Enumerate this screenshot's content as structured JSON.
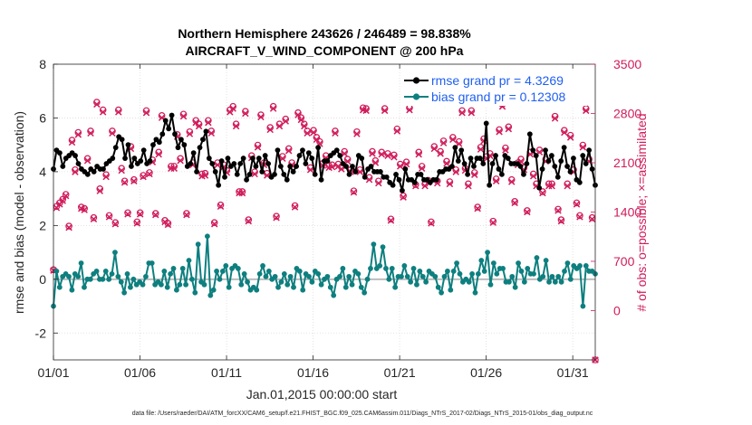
{
  "chart_data": {
    "type": "line",
    "title_line1": "Northern Hemisphere 243626 / 246489 = 98.838%",
    "title_line2": "AIRCRAFT_V_WIND_COMPONENT @ 200 hPa",
    "xlabel": "Jan.01,2015 00:00:00 start",
    "ylabel_left": "rmse and bias (model - observation)",
    "ylabel_right": "# of obs: o=possible; ×=assimilated",
    "footnote": "data file: /Users/raeder/DAI/ATM_forcXX/CAM6_setup/f.e21.FHIST_BGC.f09_025.CAM6assim.011/Diags_NTrS_2017-02/Diags_NTrS_2015-01/obs_diag_output.nc",
    "x_tick_labels": [
      "01/01",
      "01/06",
      "01/11",
      "01/16",
      "01/21",
      "01/26",
      "01/31"
    ],
    "x_tick_days": [
      1,
      6,
      11,
      16,
      21,
      26,
      31
    ],
    "xlim_days": [
      1,
      32.3
    ],
    "ylim_left": [
      -3,
      8
    ],
    "y_ticks_left": [
      -2,
      0,
      2,
      4,
      6,
      8
    ],
    "y_tick_labels_left": [
      "-2",
      "0",
      "2",
      "4",
      "6",
      "8"
    ],
    "ylim_right": [
      -700,
      3500
    ],
    "y_ticks_right": [
      0,
      700,
      1400,
      2100,
      2800,
      3500
    ],
    "y_tick_labels_right": [
      "0",
      "700",
      "1400",
      "2100",
      "2800",
      "3500"
    ],
    "grid": true,
    "legend_placement": "top-right",
    "colors": {
      "rmse": "#000000",
      "bias": "#0e7f7f",
      "obs": "#d01c5b",
      "zero_line": "#bdbdbd",
      "legend_text": "#1f5ff0"
    },
    "series": [
      {
        "name": "rmse grand pr = 4.3269",
        "axis": "left",
        "values": [
          4.1,
          4.8,
          4.7,
          4.2,
          4.5,
          4.6,
          4.7,
          4.6,
          4.3,
          4.1,
          4.0,
          3.9,
          4.1,
          4.0,
          4.2,
          4.1,
          4.1,
          4.3,
          4.4,
          4.5,
          4.9,
          5.3,
          5.2,
          4.5,
          5.0,
          4.2,
          4.5,
          4.3,
          4.4,
          4.8,
          4.3,
          4.4,
          5.0,
          5.2,
          5.1,
          5.4,
          5.9,
          5.6,
          6.1,
          5.4,
          4.9,
          5.2,
          5.0,
          4.2,
          4.3,
          4.7,
          4.0,
          4.9,
          5.2,
          5.5,
          4.5,
          4.3,
          4.0,
          3.5,
          4.4,
          3.8,
          4.5,
          4.2,
          4.3,
          3.9,
          4.3,
          4.5,
          3.7,
          3.9,
          4.5,
          4.2,
          4.5,
          4.0,
          4.6,
          4.3,
          3.8,
          3.9,
          4.8,
          4.2,
          3.9,
          3.7,
          4.2,
          4.0,
          4.2,
          4.6,
          4.8,
          4.3,
          4.7,
          4.5,
          3.9,
          4.9,
          3.7,
          4.4,
          4.4,
          4.6,
          4.7,
          4.8,
          4.6,
          4.3,
          4.2,
          3.9,
          4.2,
          4.0,
          4.6,
          4.5,
          3.8,
          4.1,
          4.2,
          4.0,
          4.0,
          4.0,
          3.8,
          3.8,
          3.6,
          3.5,
          3.9,
          3.7,
          3.3,
          4.1,
          3.7,
          3.7,
          3.6,
          3.9,
          3.9,
          3.7,
          3.7,
          3.6,
          3.7,
          3.7,
          4.0,
          4.0,
          4.1,
          4.1,
          4.2,
          4.9,
          4.4,
          4.8,
          4.3,
          3.9,
          4.5,
          4.2,
          4.5,
          4.5,
          4.3,
          5.8,
          3.5,
          4.3,
          4.6,
          4.1,
          3.9,
          4.6,
          4.5,
          4.3,
          4.3,
          4.3,
          4.2,
          3.9,
          4.3,
          5.4,
          4.8,
          4.6,
          3.4,
          4.1,
          4.8,
          4.4,
          4.6,
          4.2,
          3.8,
          4.4,
          4.9,
          4.2,
          4.0,
          4.5,
          3.7,
          3.6,
          4.6,
          4.3,
          4.8,
          4.1,
          3.5
        ]
      },
      {
        "name": "bias grand pr = 0.12308",
        "axis": "left",
        "values": [
          -1.0,
          0.3,
          -0.3,
          0.1,
          0.2,
          0.1,
          -0.4,
          0.2,
          0.1,
          0.6,
          -0.3,
          0.0,
          0.0,
          0.2,
          0.3,
          0.0,
          0.0,
          0.3,
          0.0,
          0.2,
          1.0,
          0.1,
          -0.1,
          -0.5,
          0.2,
          -0.3,
          0.0,
          -0.2,
          -0.1,
          -0.2,
          0.1,
          0.6,
          0.6,
          -0.2,
          -0.1,
          -0.2,
          0.3,
          -0.3,
          0.2,
          0.4,
          -0.4,
          -0.2,
          0.4,
          -0.2,
          0.7,
          0.0,
          -0.5,
          1.3,
          -0.1,
          -0.2,
          1.6,
          -0.6,
          -0.4,
          0.3,
          0.0,
          0.3,
          0.5,
          -0.3,
          0.4,
          0.5,
          0.4,
          -0.2,
          0.2,
          -0.1,
          -0.4,
          -0.3,
          -0.4,
          0.2,
          0.5,
          0.1,
          0.3,
          0.0,
          0.1,
          -0.3,
          -0.1,
          0.2,
          -0.2,
          0.1,
          -0.3,
          0.4,
          0.3,
          -0.4,
          0.2,
          0.1,
          -0.1,
          0.3,
          0.2,
          -0.2,
          0.0,
          0.1,
          -0.3,
          -0.6,
          0.0,
          0.1,
          0.4,
          -0.3,
          0.1,
          -0.2,
          0.3,
          0.2,
          -0.3,
          -0.5,
          0.0,
          0.4,
          1.3,
          0.4,
          0.5,
          1.2,
          0.4,
          0.0,
          0.4,
          -0.3,
          0.1,
          0.1,
          0.5,
          0.1,
          -0.1,
          0.4,
          -0.2,
          0.3,
          0.1,
          -0.1,
          0.3,
          0.2,
          0.1,
          -0.3,
          -0.5,
          0.1,
          0.3,
          -0.4,
          0.3,
          0.6,
          0.2,
          -0.1,
          0.0,
          -0.1,
          0.2,
          -0.5,
          0.2,
          0.7,
          0.3,
          1.0,
          -0.2,
          0.6,
          0.2,
          0.4,
          0.4,
          -0.1,
          -0.1,
          0.1,
          -0.3,
          0.6,
          0.3,
          -0.1,
          0.4,
          0.2,
          0.2,
          0.8,
          0.0,
          0.1,
          0.7,
          -0.1,
          0.1,
          -0.1,
          0.1,
          -0.1,
          0.3,
          0.6,
          0.0,
          0.5,
          0.4,
          0.5,
          -1.0,
          0.5,
          0.3,
          0.3,
          0.2
        ]
      },
      {
        "name": "obs possible",
        "axis": "right",
        "marker": "o",
        "values": [
          580,
          1480,
          1530,
          1580,
          1650,
          1200,
          2420,
          2000,
          2530,
          1470,
          1450,
          2160,
          2550,
          1320,
          2960,
          1730,
          2850,
          1930,
          1350,
          2550,
          1250,
          2850,
          2020,
          1840,
          1390,
          2330,
          1860,
          1260,
          1390,
          1920,
          2840,
          1960,
          2140,
          1380,
          2250,
          2770,
          1280,
          1240,
          2050,
          2050,
          2500,
          2160,
          2790,
          1380,
          2540,
          2100,
          2700,
          2650,
          1940,
          1950,
          2700,
          2550,
          1250,
          2100,
          1500,
          2070,
          1990,
          2850,
          2900,
          2650,
          1690,
          1690,
          2830,
          1290,
          2200,
          1970,
          2350,
          2780,
          2100,
          1950,
          2600,
          2900,
          1340,
          2650,
          2190,
          2720,
          2300,
          2100,
          1490,
          2810,
          2740,
          2650,
          2550,
          2030,
          2560,
          2460,
          2400,
          2090,
          2200,
          2060,
          2070,
          2550,
          2080,
          2040,
          2260,
          2150,
          2000,
          1700,
          2540,
          2000,
          2880,
          2870,
          1890,
          2260,
          2130,
          1840,
          2250,
          2870,
          2230,
          1300,
          2210,
          2580,
          2080,
          1630,
          2110,
          2880,
          3030,
          1790,
          2250,
          2050,
          1800,
          1850,
          1260,
          2330,
          1840,
          2260,
          2410,
          2120,
          1830,
          2460,
          2000,
          2400,
          2840,
          2020,
          1800,
          2840,
          1960,
          1470,
          2320,
          2440,
          2190,
          2230,
          1270,
          1870,
          2570,
          2930,
          2310,
          2610,
          1860,
          1550,
          2100,
          2150,
          2030,
          1420,
          2250,
          1940,
          1800,
          2280,
          1690,
          2150,
          1800,
          1800,
          2760,
          1440,
          1290,
          2560,
          1800,
          2490,
          2000,
          1530,
          1350,
          2350,
          2870,
          2150,
          1320,
          -700
        ]
      },
      {
        "name": "obs assimilated",
        "axis": "right",
        "marker": "x",
        "values": [
          570,
          1460,
          1510,
          1560,
          1630,
          1180,
          2390,
          1970,
          2500,
          1450,
          1430,
          2130,
          2520,
          1300,
          2930,
          1700,
          2820,
          1900,
          1330,
          2520,
          1230,
          2820,
          1990,
          1820,
          1370,
          2300,
          1840,
          1240,
          1370,
          1900,
          2810,
          1940,
          2110,
          1360,
          2220,
          2740,
          1260,
          1220,
          2020,
          2020,
          2470,
          2130,
          2760,
          1360,
          2510,
          2070,
          2670,
          2620,
          1910,
          1920,
          2670,
          2520,
          1230,
          2070,
          1480,
          2040,
          1960,
          2820,
          2870,
          2620,
          1670,
          1670,
          2800,
          1270,
          2170,
          1940,
          2320,
          2750,
          2070,
          1920,
          2570,
          2870,
          1320,
          2620,
          2160,
          2690,
          2270,
          2070,
          1470,
          2780,
          2710,
          2620,
          2520,
          2000,
          2530,
          2430,
          2370,
          2060,
          2170,
          2030,
          2040,
          2520,
          2050,
          2010,
          2230,
          2120,
          1970,
          1680,
          2510,
          1970,
          2850,
          2840,
          1860,
          2230,
          2100,
          1810,
          2220,
          2840,
          2200,
          1280,
          2180,
          2550,
          2050,
          1610,
          2080,
          2850,
          3000,
          1770,
          2220,
          2020,
          1770,
          1820,
          1240,
          2300,
          1810,
          2230,
          2380,
          2090,
          1800,
          2430,
          1970,
          2370,
          2810,
          1990,
          1770,
          2810,
          1930,
          1450,
          2290,
          2410,
          2160,
          2200,
          1250,
          1840,
          2540,
          2900,
          2280,
          2580,
          1830,
          1530,
          2070,
          2120,
          2000,
          1400,
          2220,
          1910,
          1770,
          2250,
          1670,
          2120,
          1770,
          1770,
          2730,
          1420,
          1270,
          2530,
          1770,
          2460,
          1970,
          1510,
          1330,
          2320,
          2840,
          2120,
          1300,
          -700
        ]
      }
    ]
  }
}
